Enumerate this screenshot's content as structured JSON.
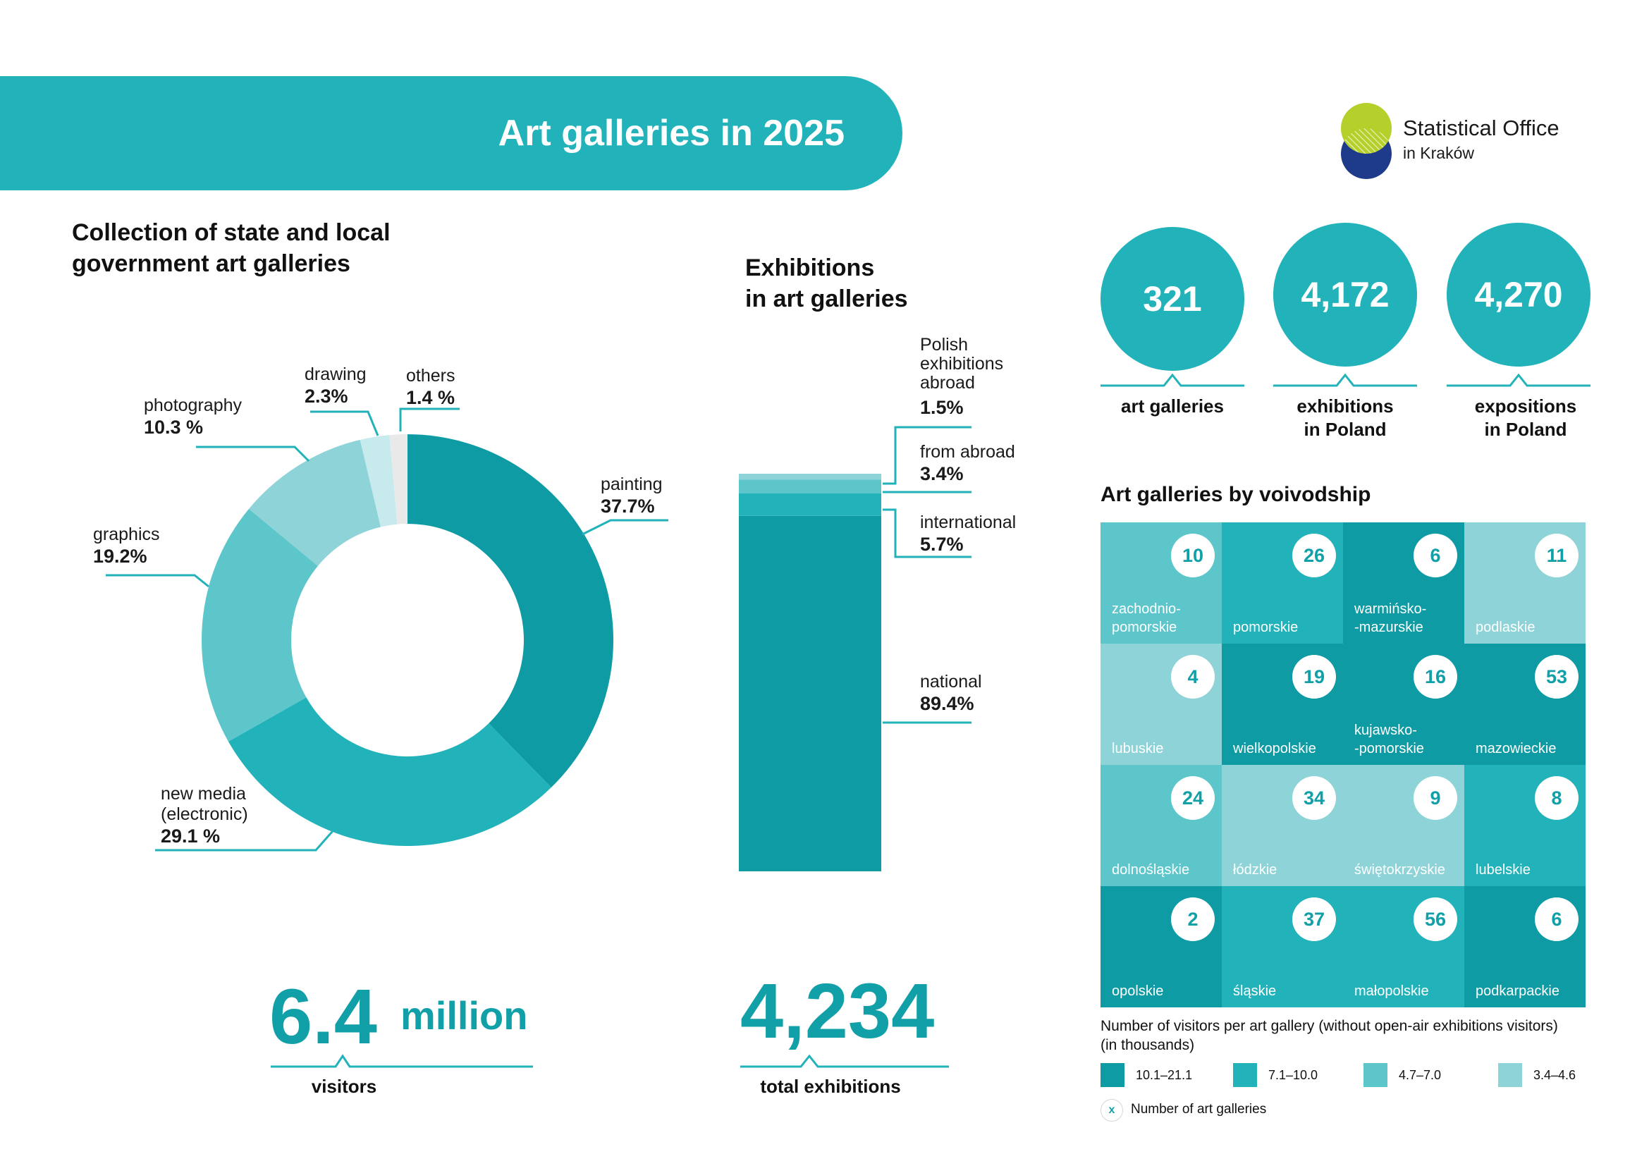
{
  "header": {
    "title": "Art galleries in 2025",
    "logo_name": "Statistical Office",
    "logo_city": "in Kraków"
  },
  "colors": {
    "teal_dark": "#0e9ba4",
    "teal_mid": "#22b2ba",
    "teal_light": "#5cc6cb",
    "teal_pale": "#8dd3d7",
    "teal_faint": "#c7eaec",
    "logo_green": "#b5cf2b",
    "logo_navy": "#1e3a8a"
  },
  "collection": {
    "title_line1": "Collection of state and local",
    "title_line2": "government art galleries"
  },
  "exhibitions_panel": {
    "title_line1": "Exhibitions",
    "title_line2": "in art galleries"
  },
  "chart_data": [
    {
      "type": "pie",
      "variant": "donut",
      "categories": [
        "painting",
        "new media (electronic)",
        "graphics",
        "photography",
        "drawing",
        "others"
      ],
      "values": [
        37.7,
        29.1,
        19.2,
        10.3,
        2.3,
        1.4
      ],
      "labels": {
        "painting": {
          "name": "painting",
          "pct": "37.7%"
        },
        "new_media": {
          "name_line1": "new media",
          "name_line2": "(electronic)",
          "pct": "29.1 %"
        },
        "graphics": {
          "name": "graphics",
          "pct": "19.2%"
        },
        "photography": {
          "name": "photography",
          "pct": "10.3 %"
        },
        "drawing": {
          "name": "drawing",
          "pct": "2.3%"
        },
        "others": {
          "name": "others",
          "pct": "1.4 %"
        }
      },
      "colors": [
        "#0e9ba4",
        "#22b2ba",
        "#5cc6cb",
        "#8dd3d7",
        "#c7eaec",
        "#e9e9e9"
      ]
    },
    {
      "type": "bar",
      "variant": "stacked-100",
      "categories": [
        "national",
        "international",
        "from abroad",
        "Polish exhibitions abroad"
      ],
      "values": [
        89.4,
        5.7,
        3.4,
        1.5
      ],
      "labels": {
        "national": {
          "name": "national",
          "pct": "89.4%"
        },
        "international": {
          "name": "international",
          "pct": "5.7%"
        },
        "from_abroad": {
          "name": "from abroad",
          "pct": "3.4%"
        },
        "polish_abroad": {
          "name_line1": "Polish",
          "name_line2": "exhibitions",
          "name_line3": "abroad",
          "pct": "1.5%"
        }
      },
      "colors": [
        "#0e9ba4",
        "#22b2ba",
        "#5cc6cb",
        "#8dd3d7"
      ]
    }
  ],
  "visitors": {
    "number": "6.4",
    "unit": "million",
    "label": "visitors"
  },
  "total_exhibitions": {
    "number": "4,234",
    "label": "total exhibitions"
  },
  "kpis": [
    {
      "value": "321",
      "label_line1": "art galleries",
      "label_line2": ""
    },
    {
      "value": "4,172",
      "label_line1": "exhibitions",
      "label_line2": "in Poland"
    },
    {
      "value": "4,270",
      "label_line1": "expositions",
      "label_line2": "in Poland"
    }
  ],
  "voivodship": {
    "title": "Art galleries by voivodship",
    "cells": [
      {
        "name1": "zachodnio-",
        "name2": "pomorskie",
        "count": "10",
        "class": 3
      },
      {
        "name1": "pomorskie",
        "name2": "",
        "count": "26",
        "class": 2
      },
      {
        "name1": "warmińsko-",
        "name2": "-mazurskie",
        "count": "6",
        "class": 1
      },
      {
        "name1": "podlaskie",
        "name2": "",
        "count": "11",
        "class": 4
      },
      {
        "name1": "lubuskie",
        "name2": "",
        "count": "4",
        "class": 4
      },
      {
        "name1": "wielkopolskie",
        "name2": "",
        "count": "19",
        "class": 1
      },
      {
        "name1": "kujawsko-",
        "name2": "-pomorskie",
        "count": "16",
        "class": 1
      },
      {
        "name1": "mazowieckie",
        "name2": "",
        "count": "53",
        "class": 1
      },
      {
        "name1": "dolnośląskie",
        "name2": "",
        "count": "24",
        "class": 3
      },
      {
        "name1": "łódzkie",
        "name2": "",
        "count": "34",
        "class": 4
      },
      {
        "name1": "świętokrzyskie",
        "name2": "",
        "count": "9",
        "class": 4
      },
      {
        "name1": "lubelskie",
        "name2": "",
        "count": "8",
        "class": 2
      },
      {
        "name1": "opolskie",
        "name2": "",
        "count": "2",
        "class": 1
      },
      {
        "name1": "śląskie",
        "name2": "",
        "count": "37",
        "class": 2
      },
      {
        "name1": "małopolskie",
        "name2": "",
        "count": "56",
        "class": 2
      },
      {
        "name1": "podkarpackie",
        "name2": "",
        "count": "6",
        "class": 1
      }
    ],
    "legend_title_line1": "Number of visitors per art gallery (without open-air exhibitions visitors)",
    "legend_title_line2": "(in thousands)",
    "legend": [
      {
        "range": "10.1–21.1",
        "color": "#0e9ba4"
      },
      {
        "range": "7.1–10.0",
        "color": "#22b2ba"
      },
      {
        "range": "4.7–7.0",
        "color": "#5cc6cb"
      },
      {
        "range": "3.4–4.6",
        "color": "#8dd3d7"
      }
    ],
    "count_legend_symbol": "x",
    "count_legend_label": "Number of art galleries"
  }
}
